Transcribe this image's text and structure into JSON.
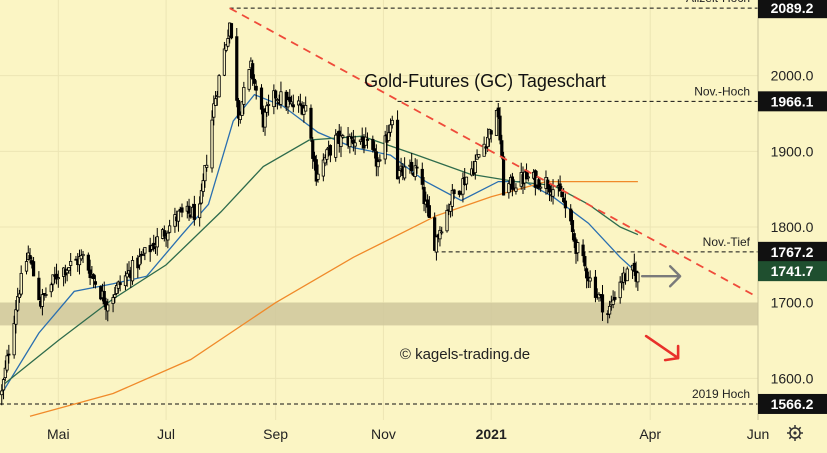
{
  "colors": {
    "background": "#fbf5c4",
    "candle": "#000000",
    "ma_blue": "#2a6fb0",
    "ma_green": "#2e6b4c",
    "ma_orange": "#f08a2a",
    "trendline": "#ef4b3a",
    "price_label_bg": "#111111",
    "price_label_text": "#ffffff",
    "support_zone": "#cfc79c",
    "arrow_gray": "#7a7a7a",
    "arrow_red": "#e8312a"
  },
  "chart_data": {
    "type": "candlestick",
    "title": "Gold-Futures (GC) Tageschart",
    "watermark": "© kagels-trading.de",
    "x_axis": {
      "ticks": [
        "Mai",
        "Jul",
        "Sep",
        "Nov",
        "2021",
        "Apr",
        "Jun"
      ],
      "tick_dates": [
        "2020-05-01",
        "2020-07-01",
        "2020-09-01",
        "2020-11-01",
        "2021-01-01",
        "2021-04-01",
        "2021-06-01"
      ],
      "range": [
        "2020-03-29",
        "2021-06-01"
      ]
    },
    "y_axis": {
      "ticks": [
        "1600.0",
        "1700.0",
        "1800.0",
        "1900.0",
        "2000.0"
      ],
      "tick_values": [
        1600,
        1700,
        1800,
        1900,
        2000
      ],
      "range": [
        1545,
        2100
      ],
      "position": "right"
    },
    "grid": true,
    "price_points": [
      {
        "date": "2020-03-30",
        "value": 1580
      },
      {
        "date": "2020-04-08",
        "value": 1710
      },
      {
        "date": "2020-04-14",
        "value": 1765
      },
      {
        "date": "2020-04-21",
        "value": 1700
      },
      {
        "date": "2020-05-01",
        "value": 1740
      },
      {
        "date": "2020-05-15",
        "value": 1760
      },
      {
        "date": "2020-05-28",
        "value": 1700
      },
      {
        "date": "2020-06-10",
        "value": 1740
      },
      {
        "date": "2020-06-25",
        "value": 1780
      },
      {
        "date": "2020-07-08",
        "value": 1815
      },
      {
        "date": "2020-07-20",
        "value": 1820
      },
      {
        "date": "2020-07-28",
        "value": 1960
      },
      {
        "date": "2020-08-06",
        "value": 2070
      },
      {
        "date": "2020-08-11",
        "value": 1950
      },
      {
        "date": "2020-08-18",
        "value": 2010
      },
      {
        "date": "2020-08-25",
        "value": 1940
      },
      {
        "date": "2020-09-01",
        "value": 1975
      },
      {
        "date": "2020-09-10",
        "value": 1960
      },
      {
        "date": "2020-09-18",
        "value": 1960
      },
      {
        "date": "2020-09-24",
        "value": 1870
      },
      {
        "date": "2020-10-05",
        "value": 1915
      },
      {
        "date": "2020-10-20",
        "value": 1915
      },
      {
        "date": "2020-10-30",
        "value": 1880
      },
      {
        "date": "2020-11-06",
        "value": 1950
      },
      {
        "date": "2020-11-09",
        "value": 1870
      },
      {
        "date": "2020-11-20",
        "value": 1875
      },
      {
        "date": "2020-11-30",
        "value": 1780
      },
      {
        "date": "2020-12-10",
        "value": 1840
      },
      {
        "date": "2020-12-22",
        "value": 1880
      },
      {
        "date": "2021-01-05",
        "value": 1950
      },
      {
        "date": "2021-01-08",
        "value": 1850
      },
      {
        "date": "2021-01-20",
        "value": 1865
      },
      {
        "date": "2021-02-01",
        "value": 1860
      },
      {
        "date": "2021-02-10",
        "value": 1840
      },
      {
        "date": "2021-02-18",
        "value": 1775
      },
      {
        "date": "2021-02-26",
        "value": 1730
      },
      {
        "date": "2021-03-08",
        "value": 1685
      },
      {
        "date": "2021-03-15",
        "value": 1730
      },
      {
        "date": "2021-03-22",
        "value": 1740
      },
      {
        "date": "2021-03-25",
        "value": 1735
      }
    ],
    "series": [
      {
        "points": [
          {
            "date": "2020-03-30",
            "value": 1580
          },
          {
            "date": "2020-04-20",
            "value": 1660
          },
          {
            "date": "2020-05-10",
            "value": 1715
          },
          {
            "date": "2020-06-01",
            "value": 1725
          },
          {
            "date": "2020-06-20",
            "value": 1735
          },
          {
            "date": "2020-07-10",
            "value": 1790
          },
          {
            "date": "2020-07-25",
            "value": 1830
          },
          {
            "date": "2020-08-08",
            "value": 1940
          },
          {
            "date": "2020-08-20",
            "value": 1975
          },
          {
            "date": "2020-09-05",
            "value": 1960
          },
          {
            "date": "2020-09-25",
            "value": 1925
          },
          {
            "date": "2020-10-15",
            "value": 1905
          },
          {
            "date": "2020-11-05",
            "value": 1895
          },
          {
            "date": "2020-11-25",
            "value": 1860
          },
          {
            "date": "2020-12-15",
            "value": 1835
          },
          {
            "date": "2021-01-05",
            "value": 1860
          },
          {
            "date": "2021-01-20",
            "value": 1860
          },
          {
            "date": "2021-02-05",
            "value": 1840
          },
          {
            "date": "2021-02-25",
            "value": 1805
          },
          {
            "date": "2021-03-15",
            "value": 1760
          },
          {
            "date": "2021-03-22",
            "value": 1745
          }
        ]
      },
      {
        "points": [
          {
            "date": "2020-03-30",
            "value": 1590
          },
          {
            "date": "2020-05-01",
            "value": 1650
          },
          {
            "date": "2020-06-01",
            "value": 1705
          },
          {
            "date": "2020-07-01",
            "value": 1750
          },
          {
            "date": "2020-08-01",
            "value": 1820
          },
          {
            "date": "2020-08-25",
            "value": 1880
          },
          {
            "date": "2020-09-20",
            "value": 1915
          },
          {
            "date": "2020-10-20",
            "value": 1920
          },
          {
            "date": "2020-11-20",
            "value": 1895
          },
          {
            "date": "2020-12-20",
            "value": 1870
          },
          {
            "date": "2021-01-15",
            "value": 1860
          },
          {
            "date": "2021-02-05",
            "value": 1855
          },
          {
            "date": "2021-02-25",
            "value": 1830
          },
          {
            "date": "2021-03-15",
            "value": 1800
          },
          {
            "date": "2021-03-25",
            "value": 1790
          }
        ]
      },
      {
        "points": [
          {
            "date": "2020-04-15",
            "value": 1550
          },
          {
            "date": "2020-06-01",
            "value": 1580
          },
          {
            "date": "2020-07-15",
            "value": 1625
          },
          {
            "date": "2020-09-01",
            "value": 1700
          },
          {
            "date": "2020-10-15",
            "value": 1760
          },
          {
            "date": "2020-12-01",
            "value": 1815
          },
          {
            "date": "2021-01-01",
            "value": 1840
          },
          {
            "date": "2021-02-01",
            "value": 1860
          },
          {
            "date": "2021-02-20",
            "value": 1860
          },
          {
            "date": "2021-03-25",
            "value": 1860
          }
        ]
      }
    ],
    "trendline": {
      "from": {
        "date": "2020-08-06",
        "value": 2089.2
      },
      "to": {
        "date": "2021-06-01",
        "value": 1707
      }
    },
    "reference_levels": [
      {
        "value": 2089.2,
        "price_label": "2089.2",
        "label": "Allzeit-Hoch",
        "from": "2020-08-06"
      },
      {
        "value": 1966.1,
        "price_label": "1966.1",
        "label": "Nov.-Hoch",
        "from": "2020-11-09"
      },
      {
        "value": 1767.2,
        "price_label": "1767.2",
        "label": "Nov.-Tief",
        "from": "2020-11-30"
      },
      {
        "value": 1566.2,
        "price_label": "1566.2",
        "label": "2019 Hoch",
        "from": "2020-03-29"
      }
    ],
    "current_price": {
      "value": 1741.7,
      "price_label": "1741.7"
    },
    "support_zone": {
      "from_value": 1670,
      "to_value": 1700
    },
    "annotations": {
      "arrow_sideways": {
        "date": "2021-04-10",
        "value": 1735
      },
      "arrow_down": {
        "date": "2021-04-10",
        "value": 1640
      }
    }
  }
}
